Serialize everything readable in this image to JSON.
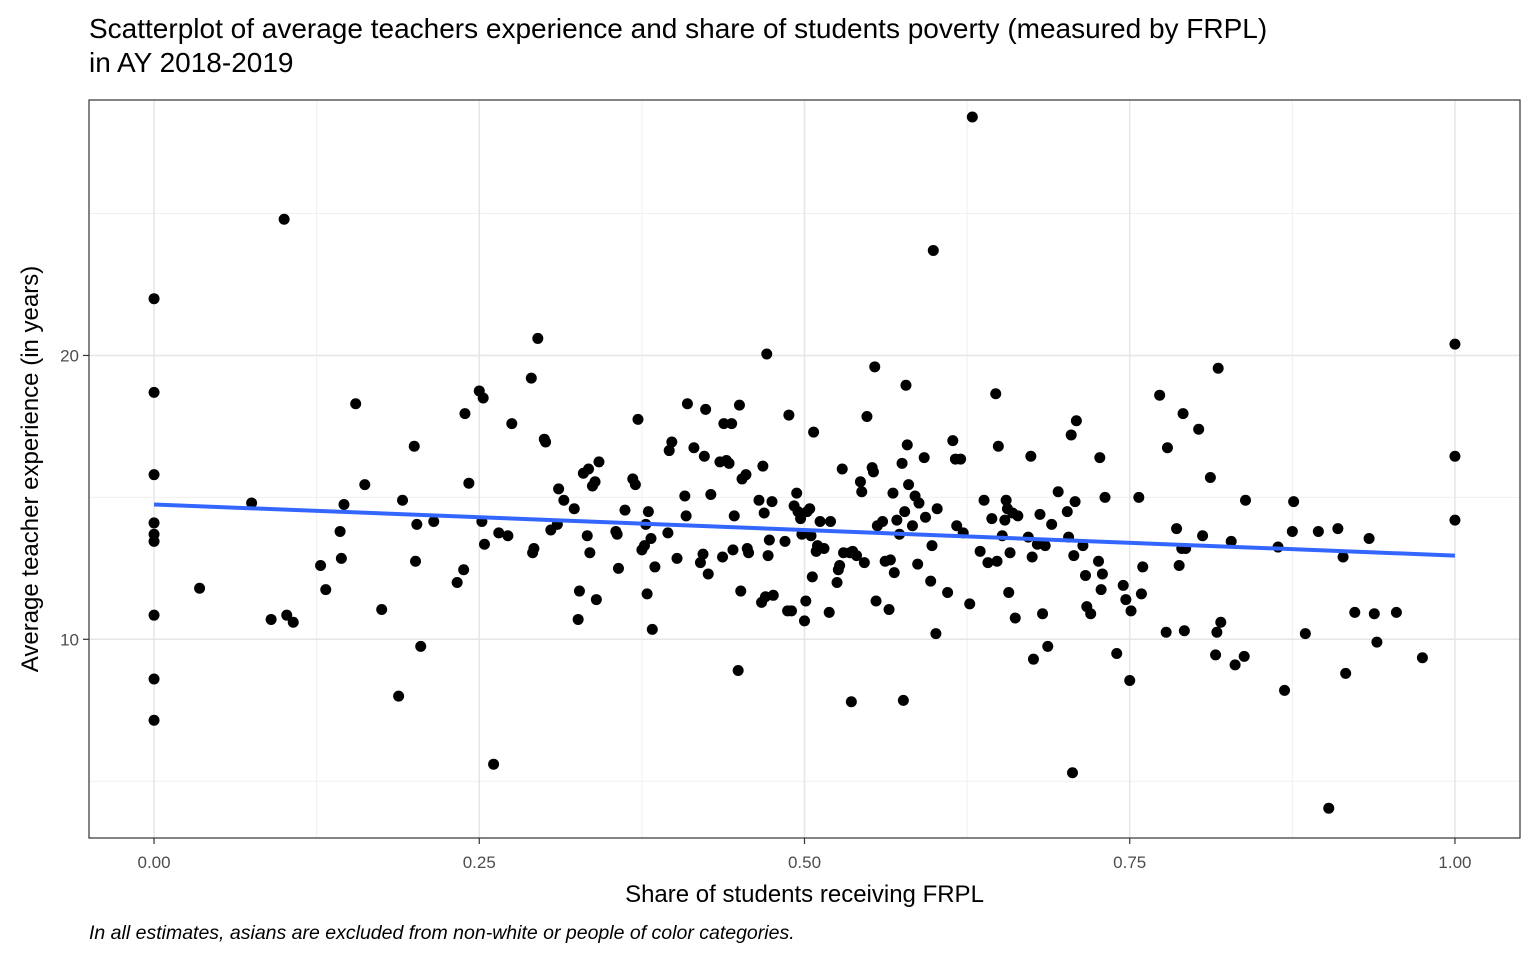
{
  "chart_data": {
    "type": "scatter",
    "title": "Scatterplot of average teachers experience and share of students poverty (measured by FRPL)\nin AY 2018-2019",
    "xlabel": "Share of students receiving FRPL",
    "ylabel": "Average teacher experience (in years)",
    "caption": "In all estimates, asians are excluded from non-white or people of color categories.",
    "xlim": [
      -0.05,
      1.05
    ],
    "ylim": [
      3.0,
      29.0
    ],
    "x_ticks": [
      0.0,
      0.25,
      0.5,
      0.75,
      1.0
    ],
    "x_tick_labels": [
      "0.00",
      "0.25",
      "0.50",
      "0.75",
      "1.00"
    ],
    "y_ticks": [
      10,
      20
    ],
    "y_tick_labels": [
      "10",
      "20"
    ],
    "grid": true,
    "theme": "bw",
    "point_color": "#000000",
    "trend_color": "#3366FF",
    "trend_line": {
      "method": "linear",
      "x": [
        0.0,
        1.0
      ],
      "y": [
        14.75,
        12.95
      ]
    },
    "points": [
      [
        0.0,
        22.0
      ],
      [
        0.0,
        18.7
      ],
      [
        0.0,
        15.8
      ],
      [
        0.0,
        14.1
      ],
      [
        0.0,
        13.7
      ],
      [
        0.0,
        13.45
      ],
      [
        0.0,
        10.85
      ],
      [
        0.0,
        8.6
      ],
      [
        0.0,
        7.15
      ],
      [
        0.035,
        11.8
      ],
      [
        0.075,
        14.8
      ],
      [
        0.09,
        10.7
      ],
      [
        0.1,
        24.8
      ],
      [
        0.102,
        10.85
      ],
      [
        0.107,
        10.6
      ],
      [
        0.128,
        12.6
      ],
      [
        0.132,
        11.75
      ],
      [
        0.143,
        13.8
      ],
      [
        0.144,
        12.85
      ],
      [
        0.146,
        14.75
      ],
      [
        0.155,
        18.3
      ],
      [
        0.162,
        15.45
      ],
      [
        0.175,
        11.05
      ],
      [
        0.188,
        8.0
      ],
      [
        0.191,
        14.9
      ],
      [
        0.2,
        16.8
      ],
      [
        0.201,
        12.75
      ],
      [
        0.202,
        14.05
      ],
      [
        0.205,
        9.75
      ],
      [
        0.215,
        14.15
      ],
      [
        0.233,
        12.0
      ],
      [
        0.238,
        12.45
      ],
      [
        0.239,
        17.95
      ],
      [
        0.242,
        15.5
      ],
      [
        0.25,
        18.75
      ],
      [
        0.252,
        14.15
      ],
      [
        0.253,
        18.5
      ],
      [
        0.254,
        13.35
      ],
      [
        0.261,
        5.6
      ],
      [
        0.265,
        13.75
      ],
      [
        0.272,
        13.65
      ],
      [
        0.275,
        17.6
      ],
      [
        0.29,
        19.2
      ],
      [
        0.291,
        13.05
      ],
      [
        0.292,
        13.2
      ],
      [
        0.295,
        20.6
      ],
      [
        0.3,
        17.05
      ],
      [
        0.301,
        16.95
      ],
      [
        0.305,
        13.85
      ],
      [
        0.31,
        14.05
      ],
      [
        0.311,
        15.3
      ],
      [
        0.315,
        14.9
      ],
      [
        0.323,
        14.6
      ],
      [
        0.326,
        10.7
      ],
      [
        0.327,
        11.7
      ],
      [
        0.33,
        15.85
      ],
      [
        0.333,
        13.65
      ],
      [
        0.334,
        16.0
      ],
      [
        0.335,
        13.05
      ],
      [
        0.337,
        15.4
      ],
      [
        0.339,
        15.55
      ],
      [
        0.34,
        11.4
      ],
      [
        0.342,
        16.25
      ],
      [
        0.355,
        13.8
      ],
      [
        0.356,
        13.7
      ],
      [
        0.357,
        12.5
      ],
      [
        0.362,
        14.55
      ],
      [
        0.368,
        15.65
      ],
      [
        0.37,
        15.45
      ],
      [
        0.372,
        17.75
      ],
      [
        0.375,
        13.15
      ],
      [
        0.377,
        13.3
      ],
      [
        0.378,
        14.05
      ],
      [
        0.379,
        11.6
      ],
      [
        0.38,
        14.5
      ],
      [
        0.382,
        13.55
      ],
      [
        0.383,
        10.35
      ],
      [
        0.385,
        12.55
      ],
      [
        0.395,
        13.75
      ],
      [
        0.396,
        16.65
      ],
      [
        0.398,
        16.95
      ],
      [
        0.402,
        12.85
      ],
      [
        0.408,
        15.05
      ],
      [
        0.409,
        14.35
      ],
      [
        0.41,
        18.3
      ],
      [
        0.415,
        16.75
      ],
      [
        0.42,
        12.7
      ],
      [
        0.422,
        13.0
      ],
      [
        0.423,
        16.45
      ],
      [
        0.424,
        18.1
      ],
      [
        0.426,
        12.3
      ],
      [
        0.428,
        15.1
      ],
      [
        0.435,
        16.25
      ],
      [
        0.437,
        12.9
      ],
      [
        0.438,
        17.6
      ],
      [
        0.44,
        16.3
      ],
      [
        0.442,
        16.2
      ],
      [
        0.444,
        17.6
      ],
      [
        0.445,
        13.15
      ],
      [
        0.446,
        14.35
      ],
      [
        0.449,
        8.9
      ],
      [
        0.45,
        18.25
      ],
      [
        0.451,
        11.7
      ],
      [
        0.452,
        15.65
      ],
      [
        0.455,
        15.8
      ],
      [
        0.456,
        13.2
      ],
      [
        0.457,
        13.05
      ],
      [
        0.465,
        14.9
      ],
      [
        0.467,
        11.3
      ],
      [
        0.468,
        16.1
      ],
      [
        0.469,
        14.45
      ],
      [
        0.47,
        11.5
      ],
      [
        0.471,
        20.05
      ],
      [
        0.472,
        12.95
      ],
      [
        0.473,
        13.5
      ],
      [
        0.475,
        14.85
      ],
      [
        0.476,
        11.55
      ],
      [
        0.485,
        13.45
      ],
      [
        0.487,
        11.0
      ],
      [
        0.488,
        17.9
      ],
      [
        0.49,
        11.0
      ],
      [
        0.492,
        14.7
      ],
      [
        0.494,
        15.15
      ],
      [
        0.495,
        14.5
      ],
      [
        0.497,
        14.25
      ],
      [
        0.498,
        13.7
      ],
      [
        0.5,
        10.65
      ],
      [
        0.501,
        11.35
      ],
      [
        0.502,
        14.5
      ],
      [
        0.504,
        14.6
      ],
      [
        0.505,
        13.65
      ],
      [
        0.506,
        12.2
      ],
      [
        0.507,
        17.3
      ],
      [
        0.509,
        13.1
      ],
      [
        0.51,
        13.3
      ],
      [
        0.512,
        14.15
      ],
      [
        0.515,
        13.2
      ],
      [
        0.519,
        10.95
      ],
      [
        0.52,
        14.15
      ],
      [
        0.525,
        12.0
      ],
      [
        0.526,
        12.45
      ],
      [
        0.527,
        12.6
      ],
      [
        0.529,
        16.0
      ],
      [
        0.53,
        13.05
      ],
      [
        0.535,
        13.05
      ],
      [
        0.536,
        7.8
      ],
      [
        0.537,
        13.1
      ],
      [
        0.54,
        12.95
      ],
      [
        0.543,
        15.55
      ],
      [
        0.544,
        15.2
      ],
      [
        0.546,
        12.7
      ],
      [
        0.548,
        17.85
      ],
      [
        0.552,
        16.05
      ],
      [
        0.553,
        15.9
      ],
      [
        0.554,
        19.6
      ],
      [
        0.555,
        11.35
      ],
      [
        0.556,
        14.0
      ],
      [
        0.56,
        14.15
      ],
      [
        0.562,
        12.75
      ],
      [
        0.565,
        11.05
      ],
      [
        0.566,
        12.8
      ],
      [
        0.568,
        15.15
      ],
      [
        0.569,
        12.35
      ],
      [
        0.571,
        14.2
      ],
      [
        0.573,
        13.7
      ],
      [
        0.575,
        16.2
      ],
      [
        0.576,
        7.85
      ],
      [
        0.577,
        14.5
      ],
      [
        0.578,
        18.95
      ],
      [
        0.579,
        16.85
      ],
      [
        0.58,
        15.45
      ],
      [
        0.583,
        14.0
      ],
      [
        0.585,
        15.05
      ],
      [
        0.587,
        12.65
      ],
      [
        0.588,
        14.8
      ],
      [
        0.592,
        16.4
      ],
      [
        0.593,
        14.3
      ],
      [
        0.597,
        12.05
      ],
      [
        0.598,
        13.3
      ],
      [
        0.599,
        23.7
      ],
      [
        0.601,
        10.2
      ],
      [
        0.602,
        14.6
      ],
      [
        0.61,
        11.65
      ],
      [
        0.614,
        17.0
      ],
      [
        0.616,
        16.35
      ],
      [
        0.617,
        14.0
      ],
      [
        0.62,
        16.35
      ],
      [
        0.622,
        13.75
      ],
      [
        0.627,
        11.25
      ],
      [
        0.629,
        28.4
      ],
      [
        0.635,
        13.1
      ],
      [
        0.638,
        14.9
      ],
      [
        0.641,
        12.7
      ],
      [
        0.644,
        14.25
      ],
      [
        0.647,
        18.65
      ],
      [
        0.648,
        12.75
      ],
      [
        0.649,
        16.8
      ],
      [
        0.652,
        13.65
      ],
      [
        0.654,
        14.2
      ],
      [
        0.655,
        14.9
      ],
      [
        0.656,
        14.6
      ],
      [
        0.657,
        11.65
      ],
      [
        0.658,
        13.05
      ],
      [
        0.66,
        14.45
      ],
      [
        0.662,
        10.75
      ],
      [
        0.664,
        14.35
      ],
      [
        0.672,
        13.6
      ],
      [
        0.674,
        16.45
      ],
      [
        0.675,
        12.9
      ],
      [
        0.676,
        9.3
      ],
      [
        0.679,
        13.35
      ],
      [
        0.681,
        14.4
      ],
      [
        0.683,
        10.9
      ],
      [
        0.685,
        13.3
      ],
      [
        0.687,
        9.75
      ],
      [
        0.69,
        14.05
      ],
      [
        0.695,
        15.2
      ],
      [
        0.702,
        14.5
      ],
      [
        0.703,
        13.6
      ],
      [
        0.705,
        17.2
      ],
      [
        0.706,
        5.3
      ],
      [
        0.707,
        12.95
      ],
      [
        0.708,
        14.85
      ],
      [
        0.709,
        17.7
      ],
      [
        0.714,
        13.3
      ],
      [
        0.716,
        12.25
      ],
      [
        0.717,
        11.15
      ],
      [
        0.72,
        10.9
      ],
      [
        0.726,
        12.75
      ],
      [
        0.727,
        16.4
      ],
      [
        0.728,
        11.75
      ],
      [
        0.729,
        12.3
      ],
      [
        0.731,
        15.0
      ],
      [
        0.74,
        9.5
      ],
      [
        0.745,
        11.9
      ],
      [
        0.747,
        11.4
      ],
      [
        0.75,
        8.55
      ],
      [
        0.751,
        11.0
      ],
      [
        0.757,
        15.0
      ],
      [
        0.759,
        11.6
      ],
      [
        0.76,
        12.55
      ],
      [
        0.773,
        18.6
      ],
      [
        0.778,
        10.25
      ],
      [
        0.779,
        16.75
      ],
      [
        0.786,
        13.9
      ],
      [
        0.788,
        12.6
      ],
      [
        0.79,
        13.2
      ],
      [
        0.791,
        17.95
      ],
      [
        0.792,
        10.3
      ],
      [
        0.793,
        13.2
      ],
      [
        0.803,
        17.4
      ],
      [
        0.806,
        13.65
      ],
      [
        0.812,
        15.7
      ],
      [
        0.816,
        9.45
      ],
      [
        0.817,
        10.25
      ],
      [
        0.818,
        19.55
      ],
      [
        0.82,
        10.6
      ],
      [
        0.828,
        13.45
      ],
      [
        0.831,
        9.1
      ],
      [
        0.838,
        9.4
      ],
      [
        0.839,
        14.9
      ],
      [
        0.864,
        13.25
      ],
      [
        0.869,
        8.2
      ],
      [
        0.875,
        13.8
      ],
      [
        0.876,
        14.85
      ],
      [
        0.885,
        10.2
      ],
      [
        0.895,
        13.8
      ],
      [
        0.903,
        4.05
      ],
      [
        0.91,
        13.9
      ],
      [
        0.914,
        12.9
      ],
      [
        0.916,
        8.8
      ],
      [
        0.923,
        10.95
      ],
      [
        0.934,
        13.55
      ],
      [
        0.938,
        10.9
      ],
      [
        0.94,
        9.9
      ],
      [
        0.955,
        10.95
      ],
      [
        0.975,
        9.35
      ],
      [
        1.0,
        20.4
      ],
      [
        1.0,
        16.45
      ],
      [
        1.0,
        14.2
      ]
    ]
  }
}
